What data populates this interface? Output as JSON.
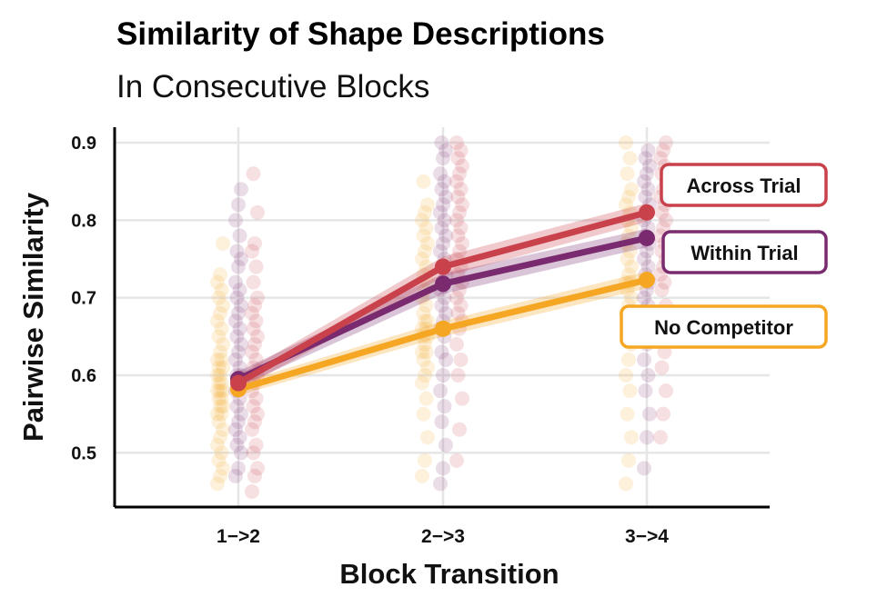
{
  "chart_data": {
    "type": "line",
    "title": "Similarity of Shape Descriptions",
    "subtitle": "In Consecutive Blocks",
    "xlabel": "Block Transition",
    "ylabel": "Pairwise Similarity",
    "categories": [
      "1−>2",
      "2−>3",
      "3−>4"
    ],
    "ylim": [
      0.43,
      0.92
    ],
    "yticks": [
      0.5,
      0.6,
      0.7,
      0.8,
      0.9
    ],
    "ytick_labels": [
      "0.5",
      "0.6",
      "0.7",
      "0.8",
      "0.9"
    ],
    "grid": true,
    "legend_placement": "right, labels at line ends",
    "series": [
      {
        "name": "No Competitor",
        "color": "#F5A623",
        "values": [
          0.582,
          0.66,
          0.723
        ],
        "ci_low": [
          0.574,
          0.65,
          0.712
        ],
        "ci_high": [
          0.59,
          0.67,
          0.734
        ],
        "points": [
          [
            0.46,
            0.47,
            0.48,
            0.49,
            0.5,
            0.51,
            0.52,
            0.53,
            0.54,
            0.55,
            0.55,
            0.56,
            0.56,
            0.57,
            0.57,
            0.58,
            0.58,
            0.58,
            0.59,
            0.59,
            0.6,
            0.6,
            0.61,
            0.61,
            0.62,
            0.62,
            0.63,
            0.64,
            0.65,
            0.66,
            0.67,
            0.68,
            0.69,
            0.7,
            0.71,
            0.72,
            0.73,
            0.77
          ],
          [
            0.47,
            0.49,
            0.52,
            0.55,
            0.57,
            0.59,
            0.6,
            0.61,
            0.62,
            0.63,
            0.63,
            0.64,
            0.65,
            0.65,
            0.66,
            0.66,
            0.67,
            0.67,
            0.68,
            0.69,
            0.7,
            0.71,
            0.72,
            0.73,
            0.74,
            0.75,
            0.76,
            0.77,
            0.78,
            0.79,
            0.8,
            0.81,
            0.82,
            0.85
          ],
          [
            0.46,
            0.49,
            0.52,
            0.55,
            0.58,
            0.6,
            0.62,
            0.64,
            0.66,
            0.67,
            0.68,
            0.69,
            0.7,
            0.71,
            0.72,
            0.72,
            0.73,
            0.74,
            0.75,
            0.76,
            0.77,
            0.78,
            0.79,
            0.8,
            0.81,
            0.82,
            0.83,
            0.84,
            0.86,
            0.88,
            0.9
          ]
        ]
      },
      {
        "name": "Within Trial",
        "color": "#7A2A6E",
        "values": [
          0.595,
          0.718,
          0.777
        ],
        "ci_low": [
          0.585,
          0.705,
          0.765
        ],
        "ci_high": [
          0.605,
          0.731,
          0.789
        ],
        "points": [
          [
            0.47,
            0.48,
            0.5,
            0.51,
            0.52,
            0.53,
            0.54,
            0.55,
            0.56,
            0.57,
            0.58,
            0.59,
            0.6,
            0.6,
            0.61,
            0.62,
            0.63,
            0.64,
            0.65,
            0.66,
            0.67,
            0.68,
            0.69,
            0.7,
            0.71,
            0.72,
            0.74,
            0.75,
            0.76,
            0.78,
            0.8,
            0.82,
            0.84
          ],
          [
            0.46,
            0.48,
            0.51,
            0.54,
            0.56,
            0.58,
            0.6,
            0.62,
            0.63,
            0.65,
            0.66,
            0.67,
            0.68,
            0.69,
            0.7,
            0.71,
            0.72,
            0.73,
            0.74,
            0.75,
            0.76,
            0.77,
            0.78,
            0.79,
            0.8,
            0.81,
            0.82,
            0.83,
            0.84,
            0.85,
            0.86,
            0.88,
            0.89,
            0.9
          ],
          [
            0.48,
            0.52,
            0.55,
            0.58,
            0.6,
            0.62,
            0.64,
            0.66,
            0.68,
            0.69,
            0.7,
            0.71,
            0.72,
            0.73,
            0.74,
            0.75,
            0.76,
            0.77,
            0.78,
            0.79,
            0.8,
            0.81,
            0.82,
            0.83,
            0.84,
            0.85,
            0.86,
            0.87,
            0.88,
            0.89
          ]
        ]
      },
      {
        "name": "Across Trial",
        "color": "#C8414B",
        "values": [
          0.59,
          0.74,
          0.81
        ],
        "ci_low": [
          0.58,
          0.727,
          0.798
        ],
        "ci_high": [
          0.6,
          0.753,
          0.822
        ],
        "points": [
          [
            0.45,
            0.47,
            0.48,
            0.5,
            0.51,
            0.53,
            0.54,
            0.55,
            0.56,
            0.57,
            0.58,
            0.59,
            0.6,
            0.61,
            0.62,
            0.63,
            0.64,
            0.65,
            0.66,
            0.67,
            0.68,
            0.69,
            0.7,
            0.72,
            0.74,
            0.76,
            0.77,
            0.81,
            0.86
          ],
          [
            0.49,
            0.53,
            0.57,
            0.6,
            0.62,
            0.64,
            0.66,
            0.67,
            0.68,
            0.69,
            0.7,
            0.71,
            0.72,
            0.73,
            0.74,
            0.75,
            0.76,
            0.77,
            0.78,
            0.79,
            0.8,
            0.81,
            0.82,
            0.83,
            0.84,
            0.85,
            0.86,
            0.87,
            0.88,
            0.89,
            0.9
          ],
          [
            0.52,
            0.55,
            0.58,
            0.61,
            0.63,
            0.65,
            0.67,
            0.69,
            0.71,
            0.72,
            0.73,
            0.74,
            0.75,
            0.76,
            0.77,
            0.78,
            0.79,
            0.8,
            0.81,
            0.82,
            0.83,
            0.84,
            0.85,
            0.86,
            0.87,
            0.88,
            0.89,
            0.9
          ]
        ]
      }
    ],
    "legend_order": [
      "Across Trial",
      "Within Trial",
      "No Competitor"
    ]
  }
}
